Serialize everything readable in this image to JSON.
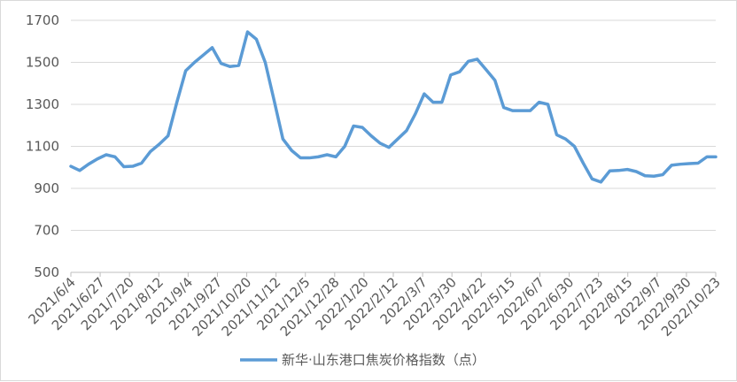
{
  "chart_data": {
    "type": "line",
    "title": "",
    "xlabel": "",
    "ylabel": "",
    "ylim": [
      500,
      1700
    ],
    "y_ticks": [
      500,
      700,
      900,
      1100,
      1300,
      1500,
      1700
    ],
    "grid": "horizontal",
    "legend_position": "bottom",
    "x_tick_labels": [
      "2021/6/4",
      "2021/6/27",
      "2021/7/20",
      "2021/8/12",
      "2021/9/4",
      "2021/9/27",
      "2021/10/20",
      "2021/11/12",
      "2021/12/5",
      "2021/12/28",
      "2022/1/20",
      "2022/2/12",
      "2022/3/7",
      "2022/3/30",
      "2022/4/22",
      "2022/5/15",
      "2022/6/7",
      "2022/6/30",
      "2022/7/23",
      "2022/8/15",
      "2022/9/7",
      "2022/9/30",
      "2022/10/23"
    ],
    "series": [
      {
        "name": "新华·山东港口焦炭价格指数（点）",
        "color": "#5b9bd5",
        "values": [
          1005,
          985,
          1015,
          1040,
          1060,
          1050,
          1003,
          1005,
          1020,
          1075,
          1110,
          1150,
          1310,
          1460,
          1500,
          1535,
          1570,
          1495,
          1480,
          1485,
          1645,
          1610,
          1500,
          1320,
          1135,
          1080,
          1045,
          1045,
          1050,
          1060,
          1050,
          1100,
          1197,
          1190,
          1150,
          1115,
          1095,
          1135,
          1175,
          1255,
          1350,
          1310,
          1310,
          1440,
          1455,
          1505,
          1515,
          1465,
          1415,
          1285,
          1270,
          1270,
          1270,
          1310,
          1300,
          1155,
          1135,
          1100,
          1020,
          945,
          930,
          983,
          985,
          990,
          980,
          960,
          958,
          965,
          1010,
          1015,
          1018,
          1020,
          1050,
          1050
        ]
      }
    ]
  }
}
